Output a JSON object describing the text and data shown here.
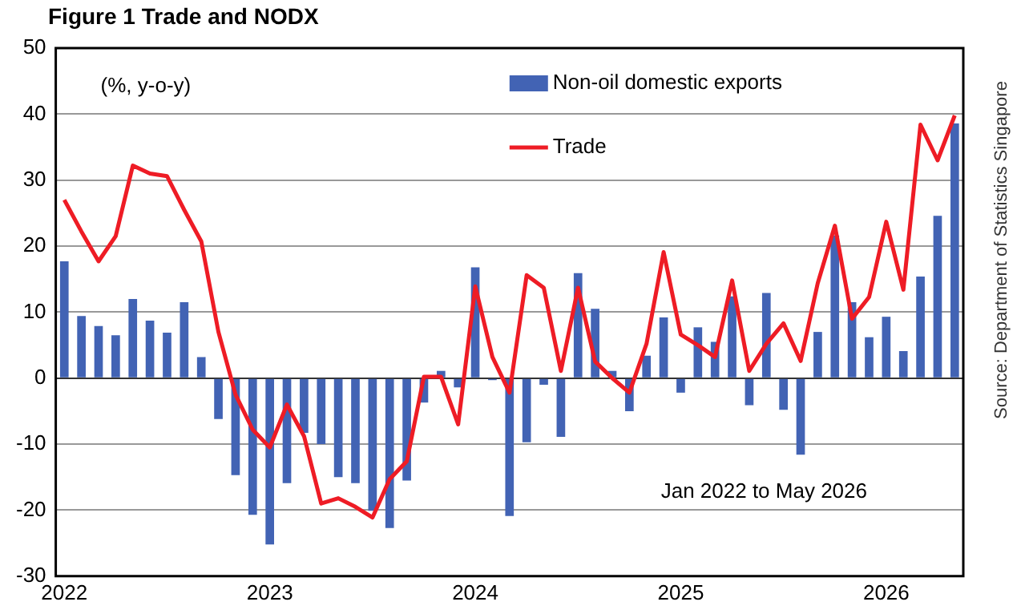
{
  "chart_data": {
    "type": "bar",
    "title": "Figure 1 Trade and NODX",
    "categories": [
      "2022",
      null,
      null,
      null,
      null,
      null,
      null,
      null,
      null,
      null,
      null,
      null,
      "2023",
      null,
      null,
      null,
      null,
      null,
      null,
      null,
      null,
      null,
      null,
      null,
      "2024",
      null,
      null,
      null,
      null,
      null,
      null,
      null,
      null,
      null,
      null,
      null,
      "2025",
      null,
      null,
      null,
      null,
      null,
      null,
      null,
      null,
      null,
      null,
      null,
      "2026",
      null,
      null,
      null,
      null
    ],
    "series": [
      {
        "name": "Non-oil domestic exports",
        "color": "#4263b4",
        "values": [
          17.7,
          9.4,
          7.9,
          6.5,
          12,
          8.7,
          6.9,
          11.5,
          3.2,
          -6.2,
          -14.7,
          -20.7,
          -25.2,
          -15.9,
          -8.3,
          -10,
          -15,
          -15.9,
          -20.1,
          -22.7,
          -15.5,
          -3.7,
          1.1,
          -1.4,
          16.8,
          -0.3,
          -20.9,
          -9.7,
          -1,
          -8.9,
          15.9,
          10.5,
          1.1,
          -5,
          3.4,
          9.2,
          -2.2,
          7.7,
          5.5,
          12.4,
          -4.1,
          12.9,
          -4.8,
          -11.6,
          7,
          21.6,
          11.5,
          6.2,
          9.3,
          4.1,
          15.4,
          24.6,
          38.6
        ]
      },
      {
        "name": "Trade",
        "type": "line",
        "color": "#ee1c25",
        "values": [
          27,
          22.2,
          17.7,
          21.5,
          32.2,
          31,
          30.6,
          25.5,
          20.7,
          7,
          -2.5,
          -7.8,
          -10.5,
          -4,
          -8.8,
          -19,
          -18.2,
          -19.5,
          -21.1,
          -15.3,
          -12.6,
          0.2,
          0.2,
          -7,
          13.9,
          3.2,
          -2.2,
          15.6,
          13.7,
          1.1,
          13.7,
          2.5,
          0,
          -2.2,
          5.2,
          19.1,
          6.6,
          5,
          3.2,
          14.8,
          1.1,
          5.2,
          8.3,
          2.6,
          14.4,
          23.1,
          9,
          12.3,
          23.7,
          13.4,
          38.4,
          33,
          39.8
        ]
      }
    ],
    "ylim": [
      -30,
      50
    ],
    "yticks": [
      -30,
      -20,
      -10,
      0,
      10,
      20,
      30,
      40,
      50
    ],
    "grid": "y",
    "legend": "top right",
    "marker": "none",
    "annotations": [
      "(%, y-o-y)",
      "Jan 2022 to May 2026",
      "Source: Department of Statistics Singapore"
    ]
  }
}
